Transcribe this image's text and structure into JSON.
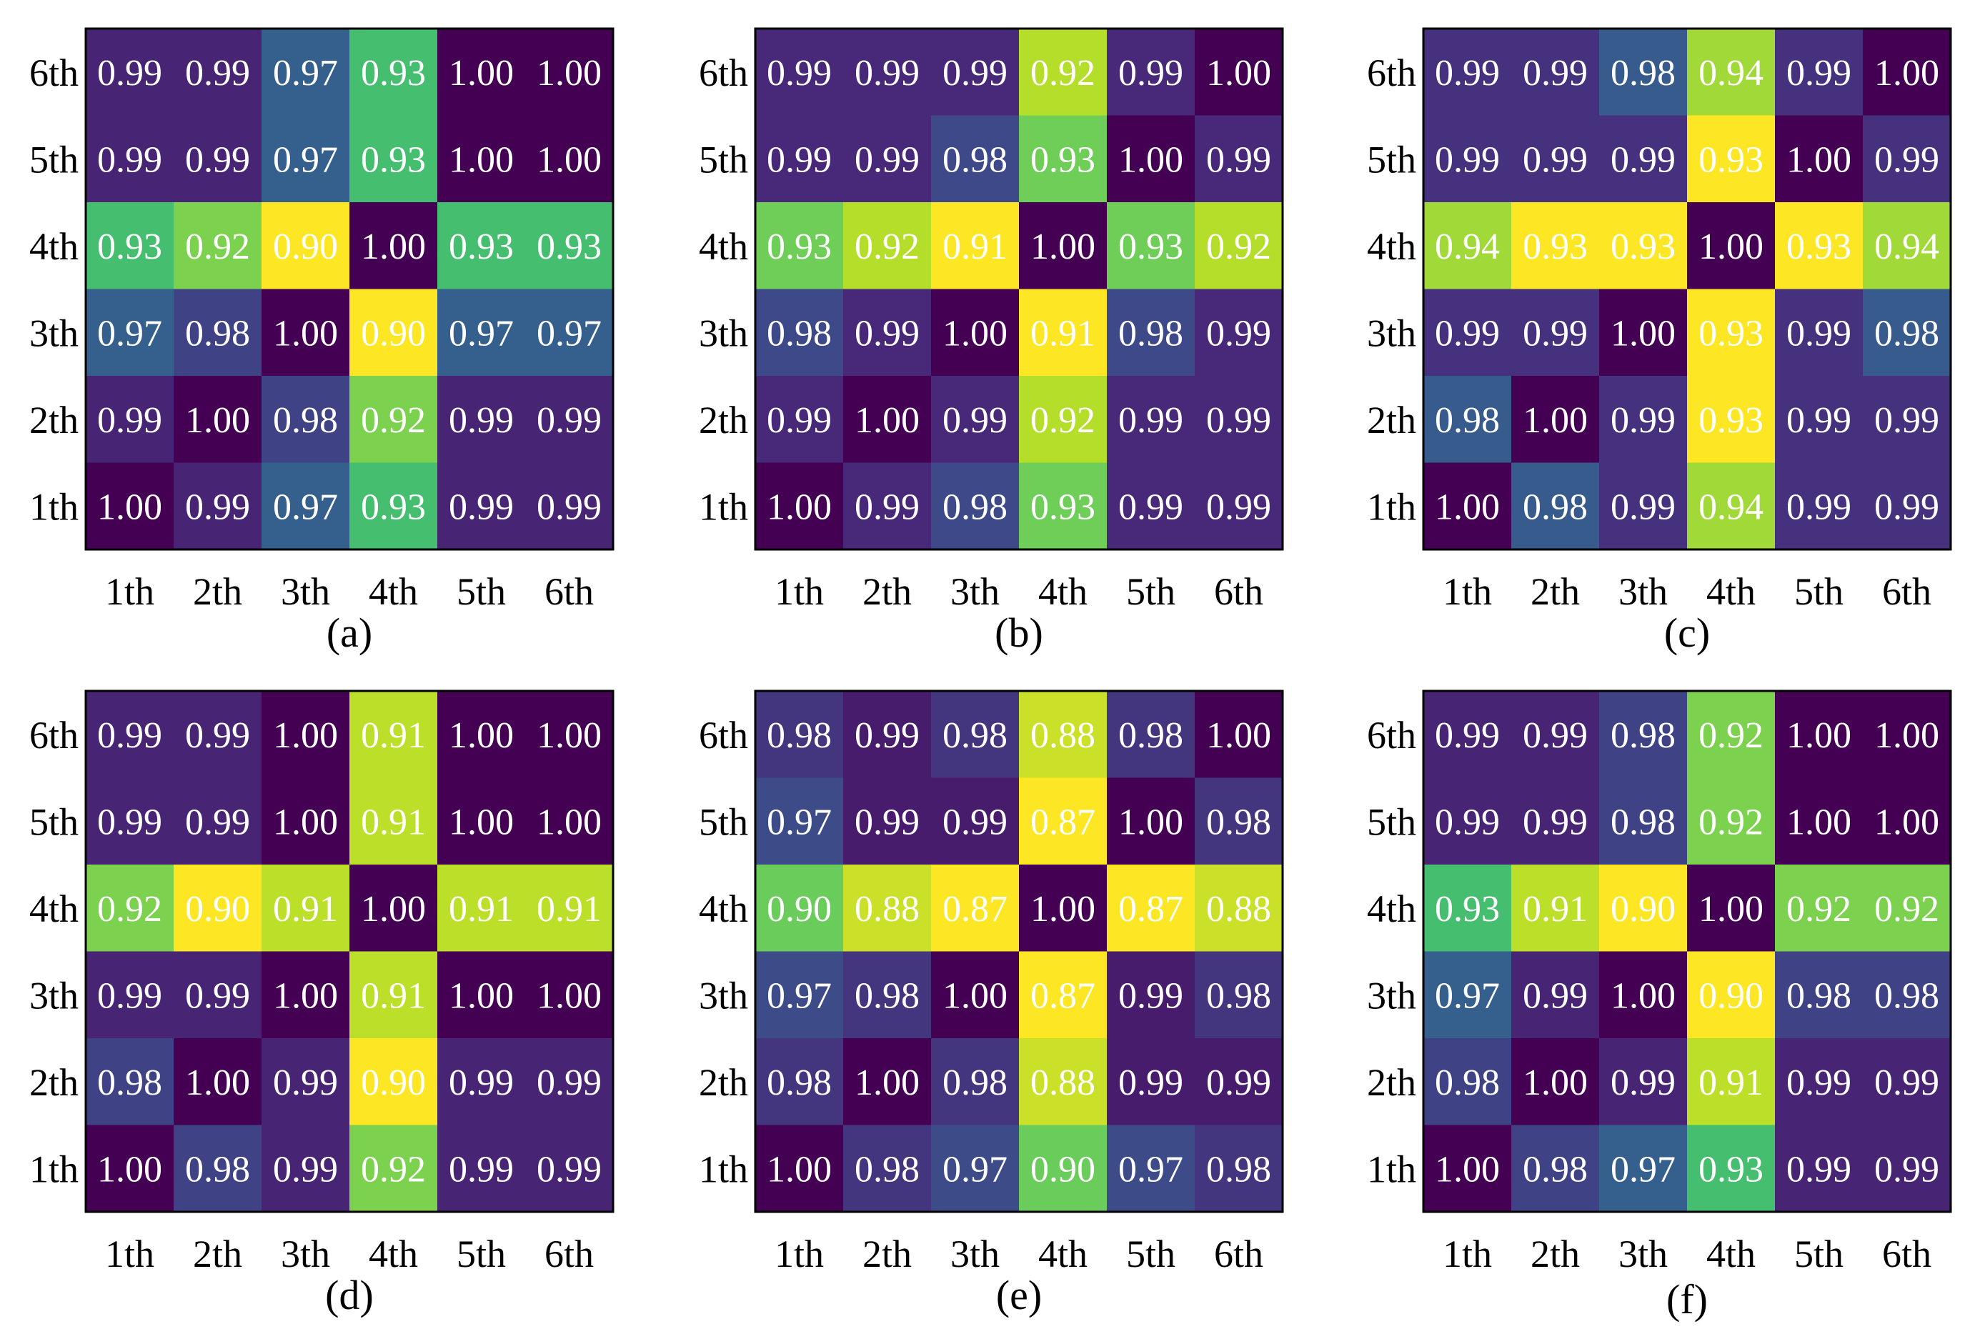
{
  "chart_data": [
    {
      "type": "heatmap",
      "caption": "(a)",
      "x_labels": [
        "1th",
        "2th",
        "3th",
        "4th",
        "5th",
        "6th"
      ],
      "y_labels_top_to_bottom": [
        "6th",
        "5th",
        "4th",
        "3th",
        "2th",
        "1th"
      ],
      "values_top_to_bottom": [
        [
          "0.99",
          "0.99",
          "0.97",
          "0.93",
          "1.00",
          "1.00"
        ],
        [
          "0.99",
          "0.99",
          "0.97",
          "0.93",
          "1.00",
          "1.00"
        ],
        [
          "0.93",
          "0.92",
          "0.90",
          "1.00",
          "0.93",
          "0.93"
        ],
        [
          "0.97",
          "0.98",
          "1.00",
          "0.90",
          "0.97",
          "0.97"
        ],
        [
          "0.99",
          "1.00",
          "0.98",
          "0.92",
          "0.99",
          "0.99"
        ],
        [
          "1.00",
          "0.99",
          "0.97",
          "0.93",
          "0.99",
          "0.99"
        ]
      ]
    },
    {
      "type": "heatmap",
      "caption": "(b)",
      "x_labels": [
        "1th",
        "2th",
        "3th",
        "4th",
        "5th",
        "6th"
      ],
      "y_labels_top_to_bottom": [
        "6th",
        "5th",
        "4th",
        "3th",
        "2th",
        "1th"
      ],
      "values_top_to_bottom": [
        [
          "0.99",
          "0.99",
          "0.99",
          "0.92",
          "0.99",
          "1.00"
        ],
        [
          "0.99",
          "0.99",
          "0.98",
          "0.93",
          "1.00",
          "0.99"
        ],
        [
          "0.93",
          "0.92",
          "0.91",
          "1.00",
          "0.93",
          "0.92"
        ],
        [
          "0.98",
          "0.99",
          "1.00",
          "0.91",
          "0.98",
          "0.99"
        ],
        [
          "0.99",
          "1.00",
          "0.99",
          "0.92",
          "0.99",
          "0.99"
        ],
        [
          "1.00",
          "0.99",
          "0.98",
          "0.93",
          "0.99",
          "0.99"
        ]
      ]
    },
    {
      "type": "heatmap",
      "caption": "(c)",
      "x_labels": [
        "1th",
        "2th",
        "3th",
        "4th",
        "5th",
        "6th"
      ],
      "y_labels_top_to_bottom": [
        "6th",
        "5th",
        "4th",
        "3th",
        "2th",
        "1th"
      ],
      "values_top_to_bottom": [
        [
          "0.99",
          "0.99",
          "0.98",
          "0.94",
          "0.99",
          "1.00"
        ],
        [
          "0.99",
          "0.99",
          "0.99",
          "0.93",
          "1.00",
          "0.99"
        ],
        [
          "0.94",
          "0.93",
          "0.93",
          "1.00",
          "0.93",
          "0.94"
        ],
        [
          "0.99",
          "0.99",
          "1.00",
          "0.93",
          "0.99",
          "0.98"
        ],
        [
          "0.98",
          "1.00",
          "0.99",
          "0.93",
          "0.99",
          "0.99"
        ],
        [
          "1.00",
          "0.98",
          "0.99",
          "0.94",
          "0.99",
          "0.99"
        ]
      ]
    },
    {
      "type": "heatmap",
      "caption": "(d)",
      "x_labels": [
        "1th",
        "2th",
        "3th",
        "4th",
        "5th",
        "6th"
      ],
      "y_labels_top_to_bottom": [
        "6th",
        "5th",
        "4th",
        "3th",
        "2th",
        "1th"
      ],
      "values_top_to_bottom": [
        [
          "0.99",
          "0.99",
          "1.00",
          "0.91",
          "1.00",
          "1.00"
        ],
        [
          "0.99",
          "0.99",
          "1.00",
          "0.91",
          "1.00",
          "1.00"
        ],
        [
          "0.92",
          "0.90",
          "0.91",
          "1.00",
          "0.91",
          "0.91"
        ],
        [
          "0.99",
          "0.99",
          "1.00",
          "0.91",
          "1.00",
          "1.00"
        ],
        [
          "0.98",
          "1.00",
          "0.99",
          "0.90",
          "0.99",
          "0.99"
        ],
        [
          "1.00",
          "0.98",
          "0.99",
          "0.92",
          "0.99",
          "0.99"
        ]
      ]
    },
    {
      "type": "heatmap",
      "caption": "(e)",
      "x_labels": [
        "1th",
        "2th",
        "3th",
        "4th",
        "5th",
        "6th"
      ],
      "y_labels_top_to_bottom": [
        "6th",
        "5th",
        "4th",
        "3th",
        "2th",
        "1th"
      ],
      "values_top_to_bottom": [
        [
          "0.98",
          "0.99",
          "0.98",
          "0.88",
          "0.98",
          "1.00"
        ],
        [
          "0.97",
          "0.99",
          "0.99",
          "0.87",
          "1.00",
          "0.98"
        ],
        [
          "0.90",
          "0.88",
          "0.87",
          "1.00",
          "0.87",
          "0.88"
        ],
        [
          "0.97",
          "0.98",
          "1.00",
          "0.87",
          "0.99",
          "0.98"
        ],
        [
          "0.98",
          "1.00",
          "0.98",
          "0.88",
          "0.99",
          "0.99"
        ],
        [
          "1.00",
          "0.98",
          "0.97",
          "0.90",
          "0.97",
          "0.98"
        ]
      ]
    },
    {
      "type": "heatmap",
      "caption": "(f)",
      "x_labels": [
        "1th",
        "2th",
        "3th",
        "4th",
        "5th",
        "6th"
      ],
      "y_labels_top_to_bottom": [
        "6th",
        "5th",
        "4th",
        "3th",
        "2th",
        "1th"
      ],
      "values_top_to_bottom": [
        [
          "0.99",
          "0.99",
          "0.98",
          "0.92",
          "1.00",
          "1.00"
        ],
        [
          "0.99",
          "0.99",
          "0.98",
          "0.92",
          "1.00",
          "1.00"
        ],
        [
          "0.93",
          "0.91",
          "0.90",
          "1.00",
          "0.92",
          "0.92"
        ],
        [
          "0.97",
          "0.99",
          "1.00",
          "0.90",
          "0.98",
          "0.98"
        ],
        [
          "0.98",
          "1.00",
          "0.99",
          "0.91",
          "0.99",
          "0.99"
        ],
        [
          "1.00",
          "0.98",
          "0.97",
          "0.93",
          "0.99",
          "0.99"
        ]
      ]
    }
  ],
  "colormap": {
    "name": "viridis",
    "stops": [
      "#440154",
      "#482878",
      "#3e4989",
      "#31688e",
      "#26828e",
      "#1f9e89",
      "#35b779",
      "#6ece58",
      "#b5de2b",
      "#fde725"
    ]
  }
}
